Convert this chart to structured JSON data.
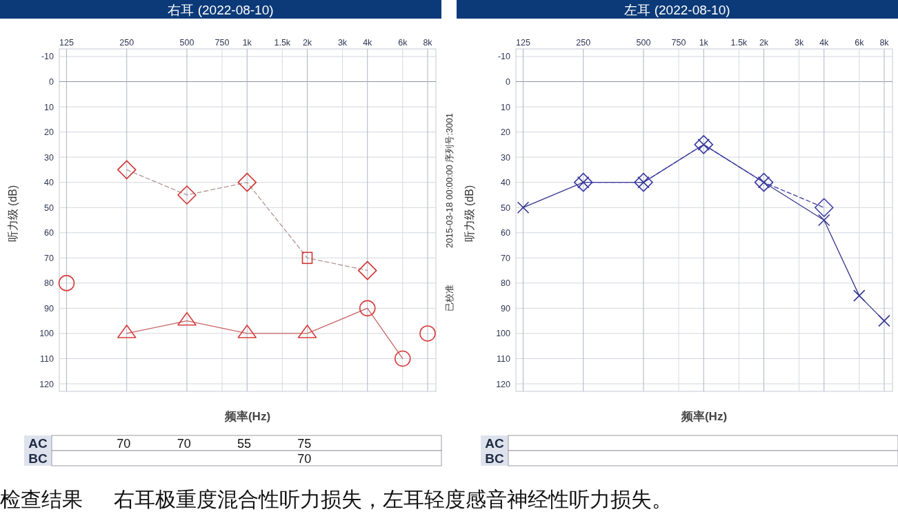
{
  "chart_data": [
    {
      "type": "line",
      "title": "右耳 (2022-08-10)",
      "xlabel": "频率(Hz)",
      "ylabel": "听力级 (dB)",
      "log": "x",
      "xlim": [
        115,
        8800
      ],
      "xticks": [
        125,
        250,
        500,
        750,
        {
          "value": 1000,
          "label": "1k"
        },
        {
          "value": 1500,
          "label": "1.5k"
        },
        {
          "value": 2000,
          "label": "2k"
        },
        {
          "value": 3000,
          "label": "3k"
        },
        {
          "value": 4000,
          "label": "4k"
        },
        {
          "value": 6000,
          "label": "6k"
        },
        {
          "value": 8000,
          "label": "8k"
        }
      ],
      "ylim": [
        123,
        -13
      ],
      "yticks": [
        -10,
        0,
        10,
        20,
        30,
        40,
        50,
        60,
        70,
        80,
        90,
        100,
        110,
        120
      ],
      "grid": true,
      "series": [
        {
          "type": "line",
          "color": "#c86464",
          "line_style": "solid",
          "x": [
            250,
            500,
            1000,
            2000,
            4000,
            6000
          ],
          "values": [
            100,
            95,
            100,
            100,
            90,
            110
          ]
        },
        {
          "type": "scatter",
          "color": "#d83c3c",
          "marker": "triangle",
          "x": [
            250,
            500,
            1000,
            2000
          ],
          "values": [
            100,
            95,
            100,
            100
          ]
        },
        {
          "type": "scatter",
          "color": "#d83c3c",
          "marker": "circle",
          "x": [
            125,
            4000,
            6000,
            8000
          ],
          "values": [
            80,
            90,
            110,
            100
          ]
        },
        {
          "type": "line",
          "color": "#b09494",
          "line_style": "dashed",
          "x": [
            250,
            500,
            1000,
            2000,
            4000
          ],
          "values": [
            35,
            45,
            40,
            70,
            75
          ]
        },
        {
          "type": "scatter",
          "color": "#d03434",
          "marker": "diamond",
          "x": [
            250,
            500,
            1000,
            4000
          ],
          "values": [
            35,
            45,
            40,
            75
          ]
        },
        {
          "type": "scatter",
          "color": "#d03434",
          "marker": "square",
          "x": [
            2000
          ],
          "values": [
            70
          ]
        }
      ],
      "annotations": [
        "2015-03-18 00:00:00 序列号:3001",
        "已校准",
        "检查结果",
        "右耳极重度混合性听力损失，左耳轻度感音神经性听力损失。"
      ]
    },
    {
      "type": "other",
      "annotations": [
        "AC",
        "BC",
        "70",
        "70",
        "55",
        "75",
        "70"
      ]
    },
    {
      "type": "line",
      "title": "左耳 (2022-08-10)",
      "xlabel": "频率(Hz)",
      "ylabel": "听力级 (dB)",
      "log": "x",
      "xlim": [
        115,
        8800
      ],
      "xticks": [
        125,
        250,
        500,
        750,
        {
          "value": 1000,
          "label": "1k"
        },
        {
          "value": 1500,
          "label": "1.5k"
        },
        {
          "value": 2000,
          "label": "2k"
        },
        {
          "value": 3000,
          "label": "3k"
        },
        {
          "value": 4000,
          "label": "4k"
        },
        {
          "value": 6000,
          "label": "6k"
        },
        {
          "value": 8000,
          "label": "8k"
        }
      ],
      "ylim": [
        123,
        -13
      ],
      "yticks": [
        -10,
        0,
        10,
        20,
        30,
        40,
        50,
        60,
        70,
        80,
        90,
        100,
        110,
        120
      ],
      "grid": true,
      "series": [
        {
          "type": "line",
          "color": "#35358f",
          "line_style": "solid",
          "marker": "cross",
          "x": [
            125,
            250,
            500,
            1000,
            2000,
            4000,
            6000,
            8000
          ],
          "values": [
            50,
            40,
            40,
            25,
            40,
            55,
            85,
            95
          ]
        },
        {
          "type": "line",
          "color": "#3a3aa6",
          "line_style": "dashed",
          "marker": "diamond",
          "x": [
            250,
            500,
            1000,
            2000,
            4000
          ],
          "values": [
            40,
            40,
            25,
            40,
            50
          ]
        }
      ]
    },
    {
      "type": "other",
      "annotations": [
        "AC",
        "BC"
      ]
    }
  ]
}
